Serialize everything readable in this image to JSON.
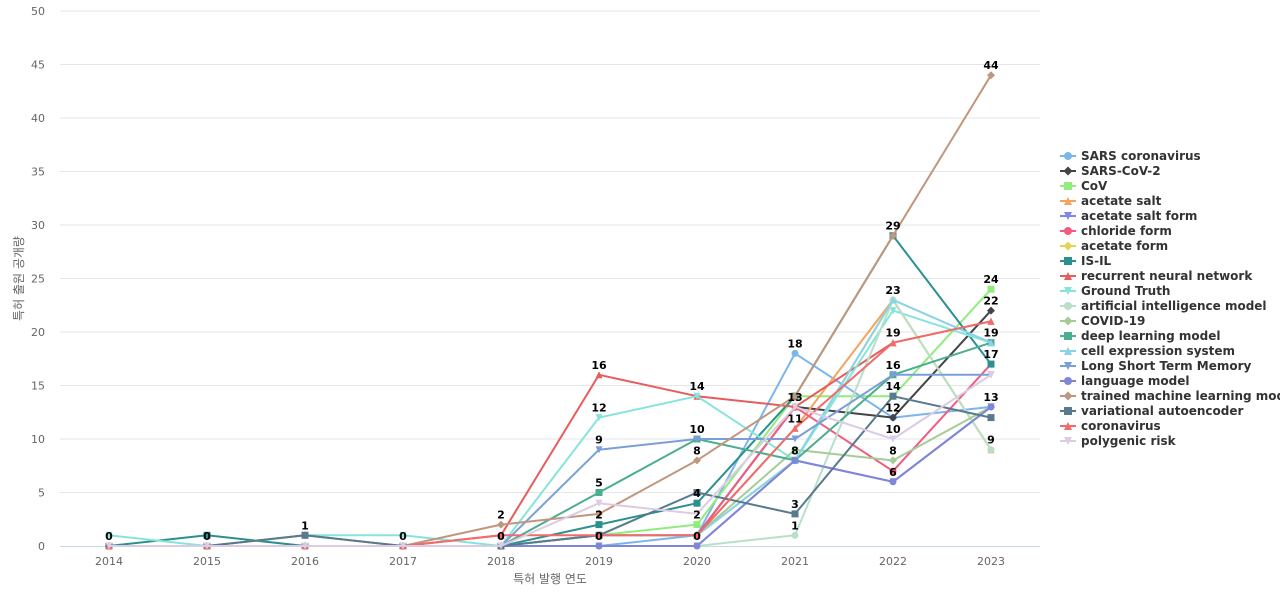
{
  "chart_data": {
    "type": "line",
    "title": "",
    "xlabel": "특허 발행 연도",
    "ylabel": "특허 출원 공개량",
    "x": [
      "2014",
      "2015",
      "2016",
      "2017",
      "2018",
      "2019",
      "2020",
      "2021",
      "2022",
      "2023"
    ],
    "yticks": [
      "0",
      "5",
      "10",
      "15",
      "20",
      "25",
      "30",
      "35",
      "40",
      "45",
      "50"
    ],
    "ylim": [
      0,
      50
    ],
    "grid": true,
    "legend_position": "right",
    "series": [
      {
        "name": "SARS coronavirus",
        "color": "#7cb5ec",
        "marker": "circle",
        "values": [
          0,
          0,
          0,
          0,
          0,
          0,
          1,
          18,
          12,
          13
        ]
      },
      {
        "name": "SARS-CoV-2",
        "color": "#434348",
        "marker": "diamond",
        "values": [
          0,
          0,
          0,
          0,
          0,
          1,
          1,
          13,
          12,
          22
        ]
      },
      {
        "name": "CoV",
        "color": "#90ed7d",
        "marker": "square",
        "values": [
          0,
          0,
          0,
          0,
          0,
          1,
          2,
          14,
          14,
          24
        ]
      },
      {
        "name": "acetate salt",
        "color": "#f7a35c",
        "marker": "triangle",
        "values": [
          0,
          0,
          0,
          0,
          0,
          1,
          1,
          11,
          23,
          9
        ]
      },
      {
        "name": "acetate salt form",
        "color": "#8085e9",
        "marker": "triangle-down",
        "values": [
          0,
          0,
          0,
          0,
          0,
          0,
          0,
          8,
          6,
          13
        ]
      },
      {
        "name": "chloride form",
        "color": "#f15c80",
        "marker": "circle",
        "values": [
          0,
          0,
          0,
          0,
          0,
          1,
          1,
          13,
          7,
          17
        ]
      },
      {
        "name": "acetate form",
        "color": "#e4d354",
        "marker": "diamond",
        "values": [
          0,
          0,
          0,
          0,
          0,
          1,
          1,
          8,
          23,
          9
        ]
      },
      {
        "name": "IS-IL",
        "color": "#2b908f",
        "marker": "square",
        "values": [
          0,
          1,
          0,
          0,
          0,
          2,
          4,
          14,
          29,
          17
        ]
      },
      {
        "name": "recurrent neural network",
        "color": "#e75c5c",
        "marker": "triangle",
        "values": [
          0,
          0,
          0,
          0,
          1,
          16,
          14,
          13,
          19,
          21
        ]
      },
      {
        "name": "Ground Truth",
        "color": "#86e4dc",
        "marker": "triangle-down",
        "values": [
          1,
          0,
          1,
          1,
          0,
          12,
          14,
          8,
          22,
          19
        ]
      },
      {
        "name": "artificial intelligence model",
        "color": "#b8e0c9",
        "marker": "circle",
        "values": [
          0,
          0,
          0,
          0,
          0,
          0,
          0,
          1,
          23,
          9
        ]
      },
      {
        "name": "COVID-19",
        "color": "#a5cc96",
        "marker": "diamond",
        "values": [
          0,
          0,
          0,
          0,
          0,
          1,
          1,
          9,
          8,
          13
        ]
      },
      {
        "name": "deep learning model",
        "color": "#4bae8e",
        "marker": "square",
        "values": [
          0,
          0,
          0,
          0,
          0,
          5,
          10,
          8,
          16,
          19
        ]
      },
      {
        "name": "cell expression system",
        "color": "#89d3e6",
        "marker": "triangle",
        "values": [
          0,
          0,
          0,
          0,
          0,
          1,
          1,
          8,
          23,
          19
        ]
      },
      {
        "name": "Long Short Term Memory",
        "color": "#7a9fd8",
        "marker": "triangle-down",
        "values": [
          0,
          0,
          0,
          0,
          0,
          9,
          10,
          10,
          16,
          16
        ]
      },
      {
        "name": "language model",
        "color": "#7f86d8",
        "marker": "circle",
        "values": [
          0,
          0,
          0,
          0,
          0,
          0,
          0,
          8,
          6,
          13
        ]
      },
      {
        "name": "trained machine learning model",
        "color": "#c0977e",
        "marker": "diamond",
        "values": [
          0,
          0,
          1,
          0,
          2,
          3,
          8,
          14,
          29,
          44
        ]
      },
      {
        "name": "variational autoencoder",
        "color": "#577a8e",
        "marker": "square",
        "values": [
          0,
          0,
          1,
          0,
          0,
          1,
          5,
          3,
          14,
          12
        ]
      },
      {
        "name": "coronavirus",
        "color": "#f06b6b",
        "marker": "triangle",
        "values": [
          0,
          0,
          0,
          0,
          1,
          1,
          1,
          11,
          19,
          21
        ]
      },
      {
        "name": "polygenic risk",
        "color": "#dccbe3",
        "marker": "triangle-down",
        "values": [
          0,
          0,
          0,
          0,
          0,
          4,
          3,
          13,
          10,
          16
        ]
      }
    ],
    "data_labels": [
      {
        "x": "2014",
        "text": "0"
      },
      {
        "x": "2015",
        "text": "0"
      },
      {
        "x": "2016",
        "text": "1"
      },
      {
        "x": "2017",
        "text": "0"
      },
      {
        "x": "2018",
        "text": "2"
      },
      {
        "x": "2018",
        "text": "0"
      },
      {
        "x": "2019",
        "text": "16"
      },
      {
        "x": "2019",
        "text": "12"
      },
      {
        "x": "2019",
        "text": "9"
      },
      {
        "x": "2019",
        "text": "5"
      },
      {
        "x": "2019",
        "text": "2"
      },
      {
        "x": "2019",
        "text": "0"
      },
      {
        "x": "2020",
        "text": "14"
      },
      {
        "x": "2020",
        "text": "10"
      },
      {
        "x": "2020",
        "text": "8"
      },
      {
        "x": "2020",
        "text": "4"
      },
      {
        "x": "2020",
        "text": "2"
      },
      {
        "x": "2020",
        "text": "0"
      },
      {
        "x": "2021",
        "text": "18"
      },
      {
        "x": "2021",
        "text": "13"
      },
      {
        "x": "2021",
        "text": "11"
      },
      {
        "x": "2021",
        "text": "8"
      },
      {
        "x": "2021",
        "text": "3"
      },
      {
        "x": "2021",
        "text": "1"
      },
      {
        "x": "2022",
        "text": "29"
      },
      {
        "x": "2022",
        "text": "23"
      },
      {
        "x": "2022",
        "text": "19"
      },
      {
        "x": "2022",
        "text": "16"
      },
      {
        "x": "2022",
        "text": "14"
      },
      {
        "x": "2022",
        "text": "12"
      },
      {
        "x": "2022",
        "text": "10"
      },
      {
        "x": "2022",
        "text": "8"
      },
      {
        "x": "2022",
        "text": "6"
      },
      {
        "x": "2023",
        "text": "44"
      },
      {
        "x": "2023",
        "text": "24"
      },
      {
        "x": "2023",
        "text": "22"
      },
      {
        "x": "2023",
        "text": "19"
      },
      {
        "x": "2023",
        "text": "17"
      },
      {
        "x": "2023",
        "text": "13"
      },
      {
        "x": "2023",
        "text": "9"
      }
    ]
  }
}
